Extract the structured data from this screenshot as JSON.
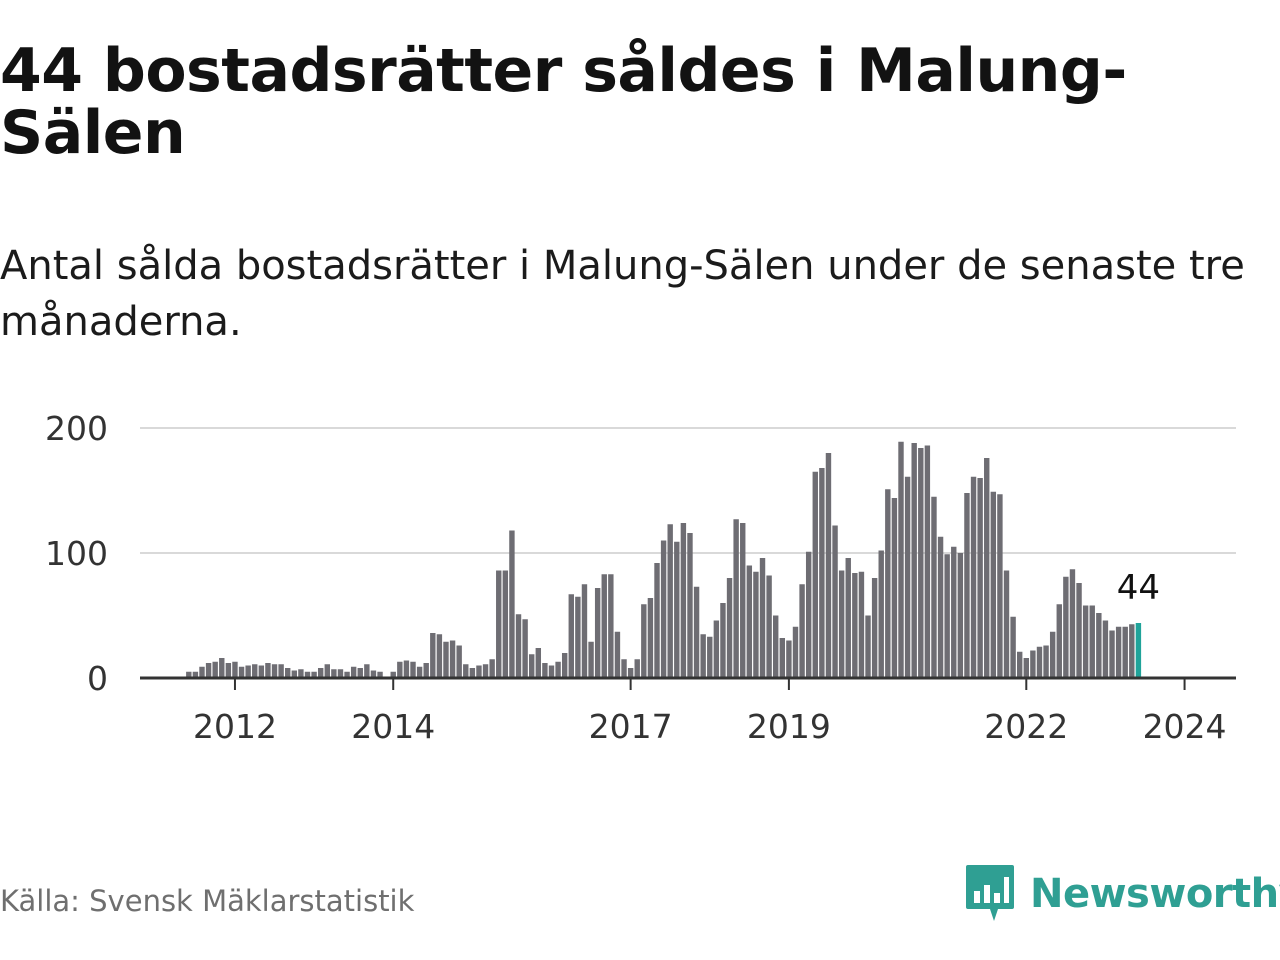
{
  "title": "44 bostadsrätter såldes i Malung-Sälen",
  "subtitle": "Antal sålda bostadsrätter i Malung-Sälen under de senaste tre månaderna.",
  "source": "Källa: Svensk Mäklarstatistik",
  "brand": {
    "name": "Newsworthy",
    "color": "#2f9f93",
    "icon": "newsworthy-logo-icon"
  },
  "colors": {
    "bar": "#6e6d73",
    "highlight": "#20a39a",
    "grid": "#d9d9d9",
    "axis": "#333333"
  },
  "chart_data": {
    "type": "bar",
    "title": "44 bostadsrätter såldes i Malung-Sälen",
    "xlabel": "",
    "ylabel": "",
    "ylim": [
      0,
      200
    ],
    "yticks": [
      0,
      100,
      200
    ],
    "x_start": 2011.4167,
    "x_step": 0.083333,
    "x_range": [
      2010.8,
      2024.65
    ],
    "xticks": [
      2012,
      2014,
      2017,
      2019,
      2022,
      2024
    ],
    "grid": true,
    "highlight_last": true,
    "last_label": "44",
    "values": [
      5,
      5,
      9,
      12,
      13,
      16,
      12,
      13,
      9,
      10,
      11,
      10,
      12,
      11,
      11,
      8,
      6,
      7,
      5,
      5,
      8,
      11,
      7,
      7,
      5,
      9,
      8,
      11,
      6,
      5,
      1,
      5,
      13,
      14,
      13,
      9,
      12,
      36,
      35,
      29,
      30,
      26,
      11,
      8,
      10,
      11,
      15,
      86,
      86,
      118,
      51,
      47,
      19,
      24,
      12,
      10,
      13,
      20,
      67,
      65,
      75,
      29,
      72,
      83,
      83,
      37,
      15,
      8,
      15,
      59,
      64,
      92,
      110,
      123,
      109,
      124,
      116,
      73,
      35,
      33,
      46,
      60,
      80,
      127,
      124,
      90,
      85,
      96,
      82,
      50,
      32,
      30,
      41,
      75,
      101,
      165,
      168,
      180,
      122,
      86,
      96,
      84,
      85,
      50,
      80,
      102,
      151,
      144,
      189,
      161,
      188,
      184,
      186,
      145,
      113,
      99,
      105,
      100,
      148,
      161,
      160,
      176,
      149,
      147,
      86,
      49,
      21,
      16,
      22,
      25,
      26,
      37,
      59,
      81,
      87,
      76,
      58,
      58,
      52,
      46,
      38,
      41,
      41,
      43,
      44
    ]
  }
}
